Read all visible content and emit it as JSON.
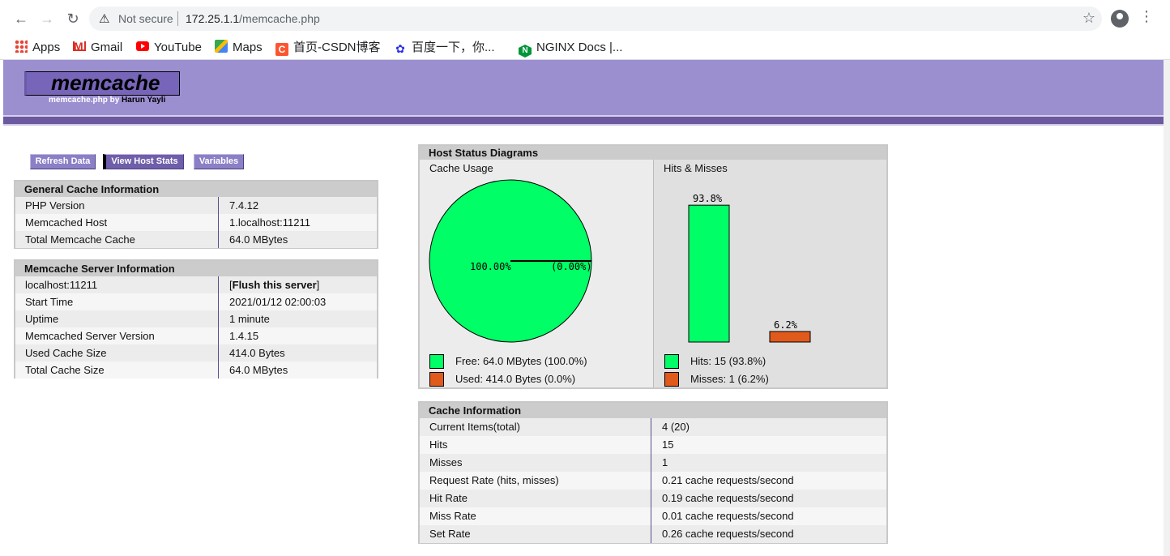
{
  "browser": {
    "security_label": "Not secure",
    "url_host": "172.25.1.1",
    "url_path": "/memcache.php",
    "bookmarks": [
      {
        "label": "Apps",
        "icon": "apps-grid-icon"
      },
      {
        "label": "Gmail",
        "icon": "gmail-icon"
      },
      {
        "label": "YouTube",
        "icon": "youtube-icon"
      },
      {
        "label": "Maps",
        "icon": "maps-icon"
      },
      {
        "label": "首页-CSDN博客",
        "icon": "csdn-icon"
      },
      {
        "label": "百度一下，你...",
        "icon": "baidu-icon"
      },
      {
        "label": "NGINX Docs |...",
        "icon": "nginx-icon"
      }
    ]
  },
  "header": {
    "logo": "memcache",
    "by_prefix": "memcache.php by",
    "author": "Harun Yayli"
  },
  "menu": {
    "refresh": "Refresh Data",
    "host_stats": "View Host Stats",
    "variables": "Variables"
  },
  "general": {
    "title": "General Cache Information",
    "rows": [
      {
        "k": "PHP Version",
        "v": "7.4.12"
      },
      {
        "k": "Memcached Host",
        "v": "1.localhost:11211"
      },
      {
        "k": "Total Memcache Cache",
        "v": "64.0 MBytes"
      }
    ]
  },
  "server": {
    "title": "Memcache Server Information",
    "host": "localhost:11211",
    "flush_open": "[",
    "flush_label": "Flush this server",
    "flush_close": "]",
    "rows": [
      {
        "k": "Start Time",
        "v": "2021/01/12 02:00:03"
      },
      {
        "k": "Uptime",
        "v": "1 minute"
      },
      {
        "k": "Memcached Server Version",
        "v": "1.4.15"
      },
      {
        "k": "Used Cache Size",
        "v": "414.0 Bytes"
      },
      {
        "k": "Total Cache Size",
        "v": "64.0 MBytes"
      }
    ]
  },
  "host_status": {
    "title": "Host Status Diagrams",
    "usage_label": "Cache Usage",
    "hits_label": "Hits & Misses",
    "pie_labels": {
      "free": "100.00%",
      "used": "(0.00%)"
    },
    "bar_labels": {
      "hits": "93.8%",
      "misses": "6.2%"
    },
    "legend_free": "Free: 64.0 MBytes (100.0%)",
    "legend_used": "Used: 414.0 Bytes (0.0%)",
    "legend_hits": "Hits: 15 (93.8%)",
    "legend_misses": "Misses: 1 (6.2%)",
    "colors": {
      "green": "#00ff66",
      "orange": "#e05a1c"
    }
  },
  "chart_data": [
    {
      "type": "pie",
      "title": "Cache Usage",
      "labels": [
        "Free",
        "Used"
      ],
      "values": [
        100.0,
        0.0
      ]
    },
    {
      "type": "bar",
      "title": "Hits & Misses",
      "categories": [
        "Hits",
        "Misses"
      ],
      "values": [
        93.8,
        6.2
      ]
    }
  ],
  "cache_info": {
    "title": "Cache Information",
    "rows": [
      {
        "k": "Current Items(total)",
        "v": "4 (20)"
      },
      {
        "k": "Hits",
        "v": "15"
      },
      {
        "k": "Misses",
        "v": "1"
      },
      {
        "k": "Request Rate (hits, misses)",
        "v": "0.21 cache requests/second"
      },
      {
        "k": "Hit Rate",
        "v": "0.19 cache requests/second"
      },
      {
        "k": "Miss Rate",
        "v": "0.01 cache requests/second"
      },
      {
        "k": "Set Rate",
        "v": "0.26 cache requests/second"
      }
    ]
  }
}
